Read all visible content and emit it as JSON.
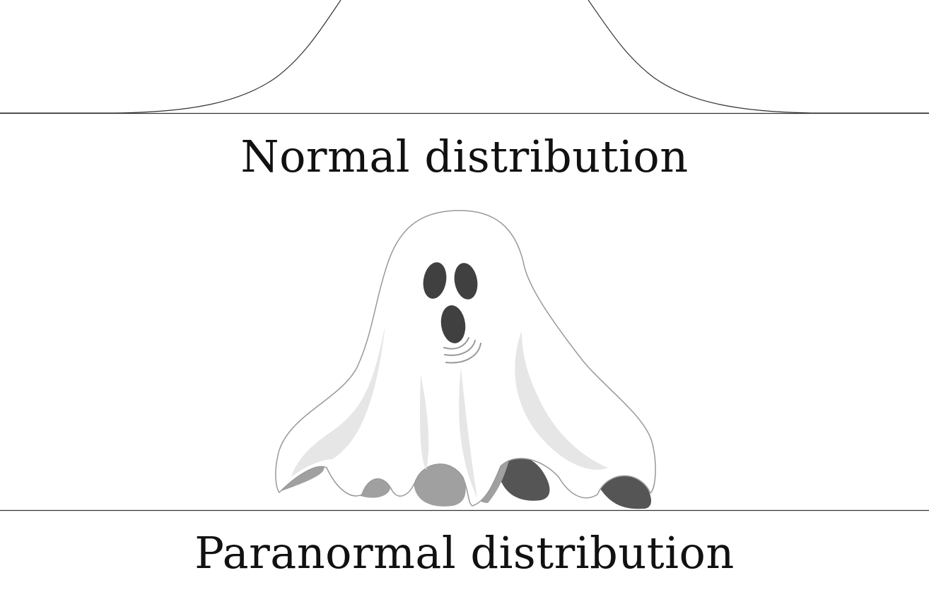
{
  "normal": {
    "caption": "Normal distribution"
  },
  "paranormal": {
    "caption": "Paranormal distribution"
  },
  "colors": {
    "line": "#333333",
    "ghost_fill": "#ffffff",
    "ghost_outline": "#999999",
    "ghost_shadow": "#e6e6e6",
    "ghost_dark": "#404040",
    "ghost_mid": "#9e9e9e"
  },
  "icons": {
    "normal_curve": "bell-curve-graphic",
    "ghost": "ghost-graphic"
  }
}
